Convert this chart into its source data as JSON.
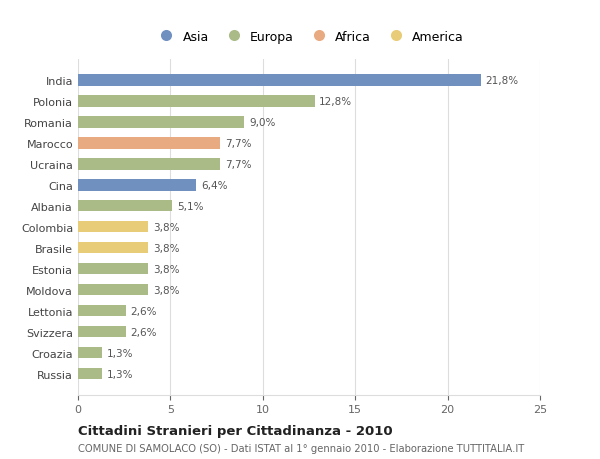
{
  "categories": [
    "India",
    "Polonia",
    "Romania",
    "Marocco",
    "Ucraina",
    "Cina",
    "Albania",
    "Colombia",
    "Brasile",
    "Estonia",
    "Moldova",
    "Lettonia",
    "Svizzera",
    "Croazia",
    "Russia"
  ],
  "values": [
    21.8,
    12.8,
    9.0,
    7.7,
    7.7,
    6.4,
    5.1,
    3.8,
    3.8,
    3.8,
    3.8,
    2.6,
    2.6,
    1.3,
    1.3
  ],
  "labels": [
    "21,8%",
    "12,8%",
    "9,0%",
    "7,7%",
    "7,7%",
    "6,4%",
    "5,1%",
    "3,8%",
    "3,8%",
    "3,8%",
    "3,8%",
    "2,6%",
    "2,6%",
    "1,3%",
    "1,3%"
  ],
  "colors": [
    "#7090c0",
    "#aabb88",
    "#aabb88",
    "#e8aa80",
    "#aabb88",
    "#7090c0",
    "#aabb88",
    "#e8cc77",
    "#e8cc77",
    "#aabb88",
    "#aabb88",
    "#aabb88",
    "#aabb88",
    "#aabb88",
    "#aabb88"
  ],
  "legend_labels": [
    "Asia",
    "Europa",
    "Africa",
    "America"
  ],
  "legend_colors": [
    "#7090c0",
    "#aabb88",
    "#e8aa80",
    "#e8cc77"
  ],
  "title": "Cittadini Stranieri per Cittadinanza - 2010",
  "subtitle": "COMUNE DI SAMOLACO (SO) - Dati ISTAT al 1° gennaio 2010 - Elaborazione TUTTITALIA.IT",
  "xlim": [
    0,
    25
  ],
  "xticks": [
    0,
    5,
    10,
    15,
    20,
    25
  ],
  "background_color": "#ffffff",
  "grid_color": "#dddddd",
  "bar_height": 0.55
}
